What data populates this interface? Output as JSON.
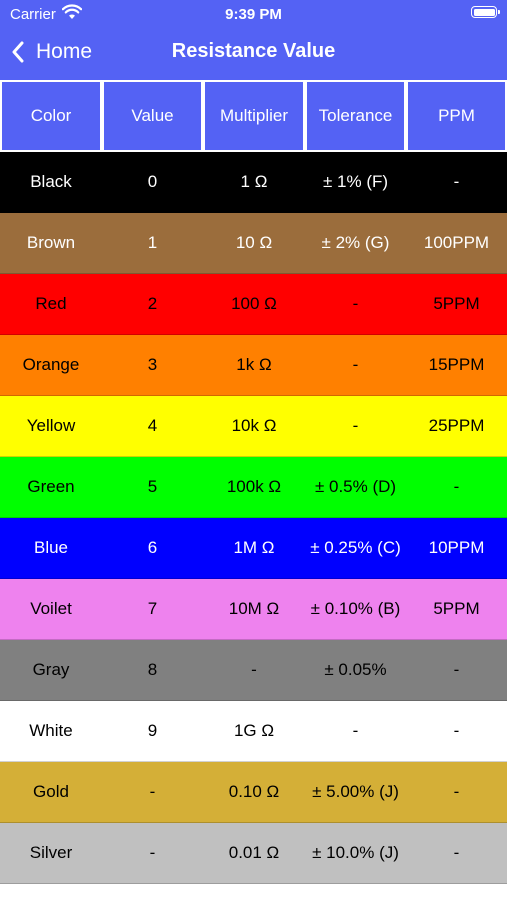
{
  "status_bar": {
    "carrier": "Carrier",
    "time": "9:39 PM"
  },
  "nav": {
    "back_label": "Home",
    "title": "Resistance Value"
  },
  "colors": {
    "header": "#5462f4"
  },
  "columns": [
    "Color",
    "Value",
    "Multiplier",
    "Tolerance",
    "PPM"
  ],
  "rows": [
    {
      "cells": [
        "Black",
        "0",
        "1 Ω",
        "± 1% (F)",
        "-"
      ],
      "bg": "#000000",
      "fg": "#ffffff"
    },
    {
      "cells": [
        "Brown",
        "1",
        "10 Ω",
        "± 2% (G)",
        "100PPM"
      ],
      "bg": "#9b6d3c",
      "fg": "#ffffff"
    },
    {
      "cells": [
        "Red",
        "2",
        "100 Ω",
        "-",
        "5PPM"
      ],
      "bg": "#ff0000",
      "fg": "#000000"
    },
    {
      "cells": [
        "Orange",
        "3",
        "1k Ω",
        "-",
        "15PPM"
      ],
      "bg": "#ff8000",
      "fg": "#000000"
    },
    {
      "cells": [
        "Yellow",
        "4",
        "10k Ω",
        "-",
        "25PPM"
      ],
      "bg": "#ffff00",
      "fg": "#000000"
    },
    {
      "cells": [
        "Green",
        "5",
        "100k Ω",
        "± 0.5% (D)",
        "-"
      ],
      "bg": "#00ff00",
      "fg": "#000000"
    },
    {
      "cells": [
        "Blue",
        "6",
        "1M Ω",
        "± 0.25% (C)",
        "10PPM"
      ],
      "bg": "#0000ff",
      "fg": "#ffffff"
    },
    {
      "cells": [
        "Voilet",
        "7",
        "10M Ω",
        "± 0.10% (B)",
        "5PPM"
      ],
      "bg": "#ee82ee",
      "fg": "#000000"
    },
    {
      "cells": [
        "Gray",
        "8",
        "-",
        "± 0.05%",
        "-"
      ],
      "bg": "#808080",
      "fg": "#000000"
    },
    {
      "cells": [
        "White",
        "9",
        "1G Ω",
        "-",
        "-"
      ],
      "bg": "#ffffff",
      "fg": "#000000"
    },
    {
      "cells": [
        "Gold",
        "-",
        "0.10 Ω",
        "± 5.00% (J)",
        "-"
      ],
      "bg": "#d4af37",
      "fg": "#000000"
    },
    {
      "cells": [
        "Silver",
        "-",
        "0.01 Ω",
        "± 10.0% (J)",
        "-"
      ],
      "bg": "#c0c0c0",
      "fg": "#000000"
    }
  ]
}
